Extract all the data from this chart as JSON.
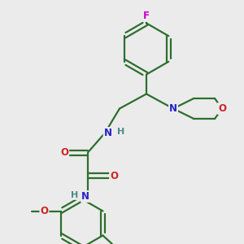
{
  "background_color": "#ebebeb",
  "bond_color": "#2d6e2d",
  "bond_width": 1.6,
  "atom_colors": {
    "F": "#cc00cc",
    "N": "#2222cc",
    "O": "#cc2222",
    "H": "#4a8a8a",
    "C": "#2d6e2d"
  },
  "figsize": [
    3.0,
    3.0
  ],
  "dpi": 100,
  "xlim": [
    0,
    10
  ],
  "ylim": [
    0,
    10
  ]
}
